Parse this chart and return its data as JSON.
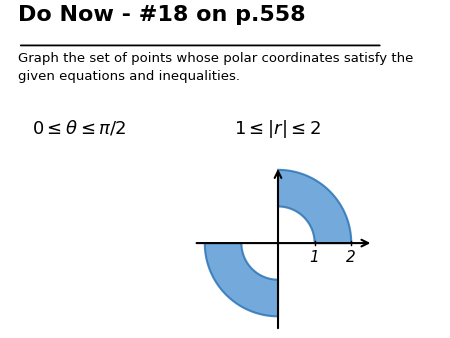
{
  "title": "Do Now - #18 on p.558",
  "subtitle": "Graph the set of points whose polar coordinates satisfy the\ngiven equations and inequalities.",
  "r_inner": 1,
  "r_outer": 2,
  "theta_min": 0,
  "theta_max": 1.5707963267948966,
  "fill_color": "#5b9bd5",
  "fill_alpha": 0.85,
  "edge_color": "#2e75b6",
  "background_color": "#ffffff",
  "figsize": [
    4.5,
    3.38
  ],
  "dpi": 100
}
